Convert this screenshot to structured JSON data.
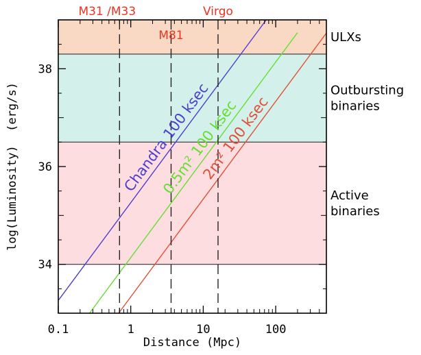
{
  "chart_data": {
    "type": "line",
    "title": "",
    "xlabel": "Distance (Mpc)",
    "ylabel": "log(Luminosity)  (erg/s)",
    "xscale": "log",
    "xlim": [
      0.1,
      500
    ],
    "ylim": [
      33,
      39
    ],
    "x_ticks": [
      0.1,
      1,
      10,
      100
    ],
    "x_tick_labels": [
      "0.1",
      "1",
      "10",
      "100"
    ],
    "y_ticks": [
      34,
      36,
      38
    ],
    "y_tick_labels": [
      "34",
      "36",
      "38"
    ],
    "bands": [
      {
        "name": "ULXs",
        "y_range": [
          38.3,
          39
        ],
        "color": "#f9d9c4"
      },
      {
        "name": "Outbursting binaries",
        "y_range": [
          36.5,
          38.3
        ],
        "color": "#d3f1ea"
      },
      {
        "name": "Active binaries",
        "y_range": [
          34,
          36.5
        ],
        "color": "#fddddf"
      }
    ],
    "galaxy_markers": [
      {
        "name": "M31 /M33",
        "x": 0.7
      },
      {
        "name": "M81",
        "x": 3.6
      },
      {
        "name": "Virgo",
        "x": 16
      }
    ],
    "series": [
      {
        "name": "Chandra 100 ksec",
        "color": "#4b3fd0",
        "x": [
          0.1,
          74
        ],
        "y": [
          33.26,
          39
        ]
      },
      {
        "name": "0.5m² 100 ksec",
        "color": "#66dd33",
        "x": [
          0.27,
          200
        ],
        "y": [
          33,
          38.74
        ]
      },
      {
        "name": "2m² 100 ksec",
        "color": "#e05038",
        "x": [
          0.68,
          500
        ],
        "y": [
          33,
          38.73
        ]
      }
    ],
    "grid": false
  },
  "colors": {
    "axis": "#000000",
    "marker_line": "#222222",
    "galaxy_label": "#ee3322",
    "band_border": "#333333"
  }
}
